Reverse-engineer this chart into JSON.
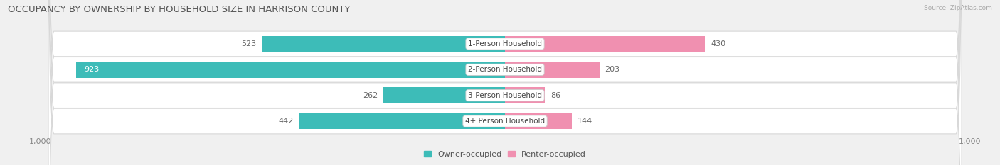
{
  "title": "OCCUPANCY BY OWNERSHIP BY HOUSEHOLD SIZE IN HARRISON COUNTY",
  "source": "Source: ZipAtlas.com",
  "categories": [
    "1-Person Household",
    "2-Person Household",
    "3-Person Household",
    "4+ Person Household"
  ],
  "owner_values": [
    523,
    923,
    262,
    442
  ],
  "renter_values": [
    430,
    203,
    86,
    144
  ],
  "owner_color": "#3dbcb8",
  "renter_color": "#f090b0",
  "label_dark": "#666666",
  "label_white": "#ffffff",
  "bg_color": "#f0f0f0",
  "row_bg_color": "#ffffff",
  "row_edge_color": "#d8d8d8",
  "axis_max": 1000,
  "title_fontsize": 9.5,
  "bar_label_fontsize": 8,
  "cat_label_fontsize": 7.5,
  "tick_fontsize": 8,
  "legend_fontsize": 8,
  "bar_height": 0.62
}
